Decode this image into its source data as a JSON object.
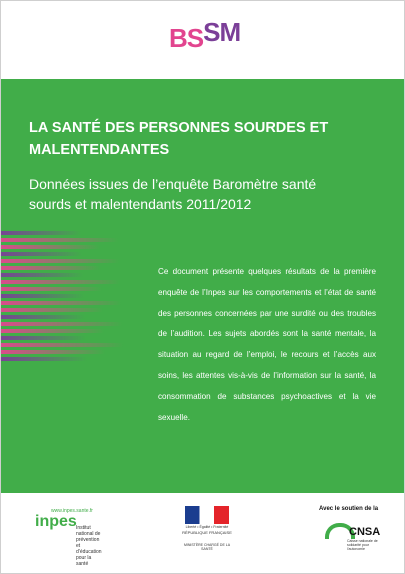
{
  "logo": {
    "left": "BS",
    "right": "SM"
  },
  "cover": {
    "title": "LA SANTÉ DES PERSONNES SOURDES ET MALENTENDANTES",
    "subtitle": "Données issues de l’enquête Baromètre santé sourds et malentendants 2011/2012",
    "summary": "Ce document présente quelques résultats de la première enquête de l’Inpes sur les comportements et l’état de santé des personnes concernées par une surdité ou des troubles de l’audition. Les sujets abordés sont la santé mentale, la situation au regard de l’emploi, le recours et l’accès aux soins, les attentes vis-à-vis de l’information sur la santé, la consommation de substances psychoactives et la vie sexuelle."
  },
  "footer": {
    "inpes": {
      "url": "www.inpes.sante.fr",
      "name": "inpes",
      "full": "Institut national de prévention et d’éducation pour la santé"
    },
    "ministry": {
      "motto": "Liberté • Égalité • Fraternité",
      "republic": "RÉPUBLIQUE FRANÇAISE",
      "name": "MINISTÈRE CHARGÉ DE LA SANTÉ"
    },
    "cnsa": {
      "intro": "Avec le soutien de la",
      "name": "CNSA",
      "full": "Caisse nationale de solidarité pour l’autonomie"
    }
  }
}
